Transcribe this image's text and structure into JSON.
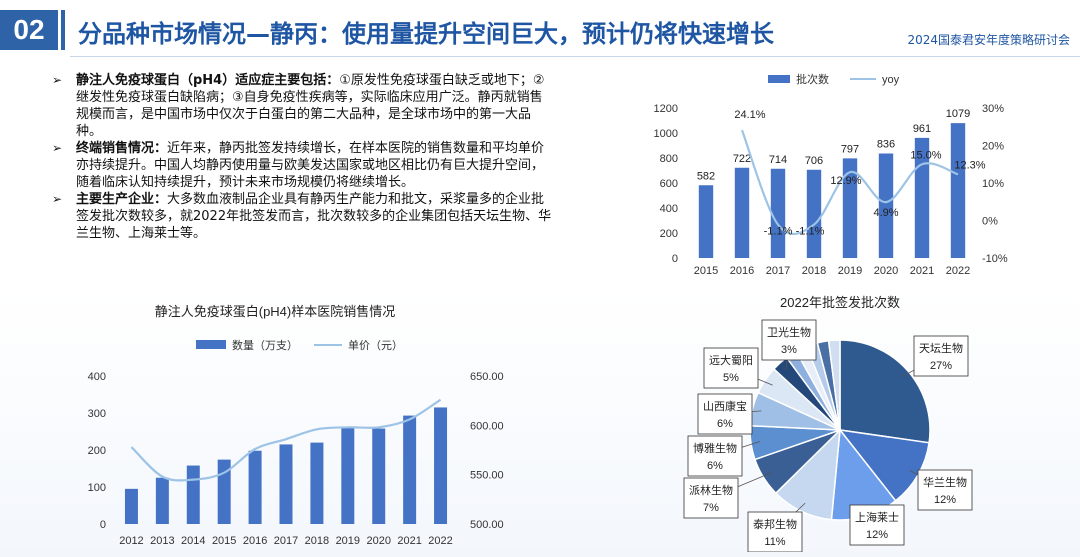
{
  "header": {
    "badge": "02",
    "title": "分品种市场情况—静丙：使用量提升空间巨大，预计仍将快速增长",
    "event": "2024国泰君安年度策略研讨会"
  },
  "bullets": [
    {
      "arrow": "➢",
      "heading": "静注人免疫球蛋白（pH4）适应症主要包括：",
      "text": "①原发性免疫球蛋白缺乏或地下；②继发性免疫球蛋白缺陷病；③自身免疫性疾病等，实际临床应用广泛。静丙就销售规模而言，是中国市场中仅次于白蛋白的第二大品种，是全球市场中的第一大品种。"
    },
    {
      "arrow": "➢",
      "heading": "终端销售情况：",
      "text": "近年来，静丙批签发持续增长，在样本医院的销售数量和平均单价亦持续提升。中国人均静丙使用量与欧美发达国家或地区相比仍有巨大提升空间，随着临床认知持续提升，预计未来市场规模仍将继续增长。"
    },
    {
      "arrow": "➢",
      "heading": "主要生产企业：",
      "text": "大多数血液制品企业具有静丙生产能力和批文，采浆量多的企业批签发批次数较多，就2022年批签发而言，批次数较多的企业集团包括天坛生物、华兰生物、上海莱士等。"
    }
  ],
  "colors": {
    "accent": "#2f63a8",
    "bar": "#4472c4",
    "line": "#9dc3e6",
    "title_text": "#1f56a3"
  },
  "chart_data": [
    {
      "type": "bar",
      "title": "",
      "categories": [
        "2015",
        "2016",
        "2017",
        "2018",
        "2019",
        "2020",
        "2021",
        "2022"
      ],
      "series": [
        {
          "name": "批次数",
          "type": "bar",
          "axis": "left",
          "values": [
            582,
            722,
            714,
            706,
            797,
            836,
            961,
            1079
          ]
        },
        {
          "name": "yoy",
          "type": "line",
          "axis": "right",
          "values": [
            null,
            24.1,
            -1.1,
            -1.1,
            12.9,
            4.9,
            15.0,
            12.3
          ]
        }
      ],
      "bar_labels": [
        "582",
        "722",
        "714",
        "706",
        "797",
        "836",
        "961",
        "1079"
      ],
      "yoy_labels": [
        "",
        "24.1%",
        "-1.1%",
        "-1.1%",
        "12.9%",
        "4.9%",
        "15.0%",
        "12.3%"
      ],
      "ylim": [
        0,
        1200
      ],
      "yticks": [
        "0",
        "200",
        "400",
        "600",
        "800",
        "1000",
        "1200"
      ],
      "y2lim": [
        -10,
        30
      ],
      "y2ticks": [
        "-10%",
        "0%",
        "10%",
        "20%",
        "30%"
      ],
      "legend_position": "top",
      "grid": false
    },
    {
      "type": "bar",
      "title": "静注人免疫球蛋白(pH4)样本医院销售情况",
      "categories": [
        "2012",
        "2013",
        "2014",
        "2015",
        "2016",
        "2017",
        "2018",
        "2019",
        "2020",
        "2021",
        "2022"
      ],
      "series": [
        {
          "name": "数量（万支）",
          "type": "bar",
          "axis": "left",
          "values": [
            95,
            125,
            158,
            174,
            198,
            215,
            220,
            260,
            258,
            293,
            315
          ]
        },
        {
          "name": "单价（元）",
          "type": "line",
          "axis": "right",
          "values": [
            578,
            548,
            545,
            552,
            576,
            586,
            596,
            598,
            598,
            606,
            626
          ]
        }
      ],
      "ylim": [
        0,
        400
      ],
      "yticks": [
        "0",
        "100",
        "200",
        "300",
        "400"
      ],
      "y2lim": [
        500,
        650
      ],
      "y2ticks": [
        "500.00",
        "550.00",
        "600.00",
        "650.00"
      ],
      "legend_position": "top",
      "grid": false
    },
    {
      "type": "pie",
      "title": "2022年批签发批次数",
      "slices": [
        {
          "name": "天坛生物",
          "value": 27,
          "label": "27%",
          "color": "#2e5a8f"
        },
        {
          "name": "华兰生物",
          "value": 12,
          "label": "12%",
          "color": "#4472c4"
        },
        {
          "name": "上海莱士",
          "value": 12,
          "label": "12%",
          "color": "#6d9eeb"
        },
        {
          "name": "泰邦生物",
          "value": 11,
          "label": "11%",
          "color": "#c5d8f0"
        },
        {
          "name": "派林生物",
          "value": 7,
          "label": "7%",
          "color": "#3a5f94"
        },
        {
          "name": "博雅生物",
          "value": 6,
          "label": "6%",
          "color": "#5b8fd0"
        },
        {
          "name": "山西康宝",
          "value": 6,
          "label": "6%",
          "color": "#9fbfe6"
        },
        {
          "name": "远大蜀阳",
          "value": 5,
          "label": "5%",
          "color": "#dbe7f5"
        },
        {
          "name": "卫光生物",
          "value": 3,
          "label": "3%",
          "color": "#24487a"
        },
        {
          "name": "",
          "value": 2,
          "label": "",
          "color": "#8eb0de"
        },
        {
          "name": "",
          "value": 2,
          "label": "",
          "color": "#e8eef7"
        },
        {
          "name": "",
          "value": 2,
          "label": "",
          "color": "#b4cbe9"
        },
        {
          "name": "",
          "value": 2,
          "label": "",
          "color": "#4a6fa5"
        },
        {
          "name": "",
          "value": 2,
          "label": "",
          "color": "#d0def0"
        }
      ]
    }
  ]
}
